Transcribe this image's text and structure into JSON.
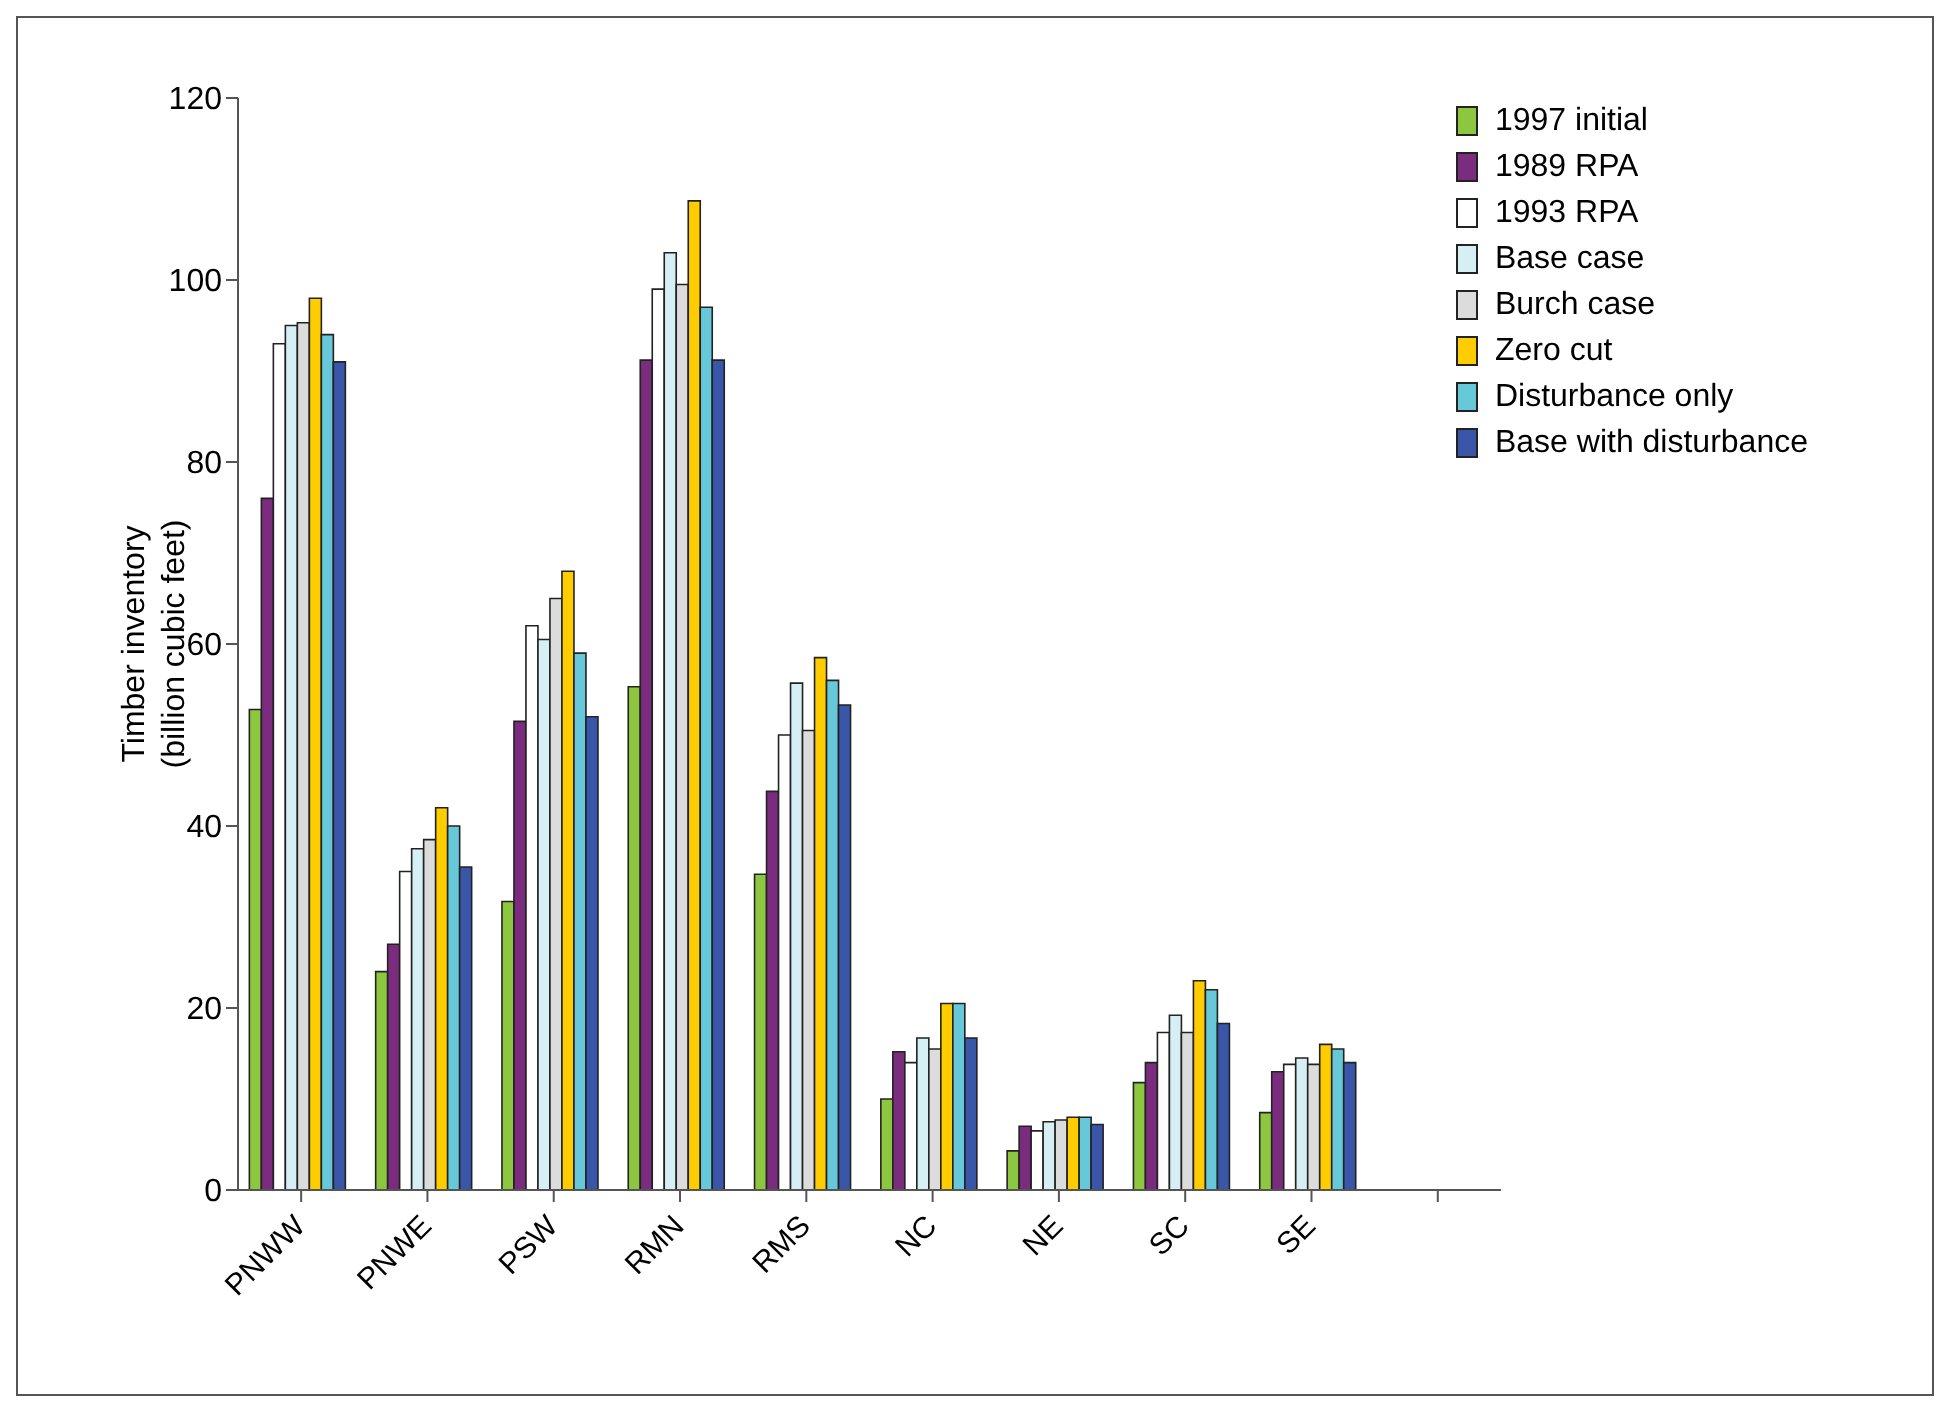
{
  "chart_data": {
    "type": "bar",
    "ylabel": "Timber inventory\n(billion cubic feet)",
    "categories": [
      "PNWW",
      "PNWE",
      "PSW",
      "RMN",
      "RMS",
      "NC",
      "NE",
      "SC",
      "SE",
      null
    ],
    "series": [
      {
        "name": "1997 initial",
        "color": "#8dc63f",
        "values": [
          52.8,
          24,
          31.7,
          55.3,
          34.7,
          10,
          4.3,
          11.8,
          8.5,
          null
        ]
      },
      {
        "name": "1989 RPA",
        "color": "#7b2c7f",
        "values": [
          76,
          27,
          51.5,
          91.2,
          43.8,
          15.2,
          7,
          14,
          13,
          null
        ]
      },
      {
        "name": "1993 RPA",
        "color": "#ffffff",
        "values": [
          93,
          35,
          62,
          99,
          50,
          14,
          6.5,
          17.3,
          13.8,
          null
        ]
      },
      {
        "name": "Base case",
        "color": "#d6eff5",
        "values": [
          95,
          37.5,
          60.5,
          103,
          55.7,
          16.7,
          7.5,
          19.2,
          14.5,
          null
        ]
      },
      {
        "name": "Burch case",
        "color": "#dcdcdc",
        "values": [
          95.3,
          38.5,
          65,
          99.5,
          50.5,
          15.5,
          7.7,
          17.3,
          13.8,
          null
        ]
      },
      {
        "name": "Zero cut",
        "color": "#ffcc00",
        "values": [
          98,
          42,
          68,
          108.7,
          58.5,
          20.5,
          8,
          23,
          16,
          null
        ]
      },
      {
        "name": "Disturbance only",
        "color": "#66c8d8",
        "values": [
          94,
          40,
          59,
          97,
          56,
          20.5,
          8,
          22,
          15.5,
          null
        ]
      },
      {
        "name": "Base with disturbance",
        "color": "#3a56a8",
        "values": [
          91,
          35.5,
          52,
          91.2,
          53.3,
          16.7,
          7.2,
          18.3,
          14,
          null
        ]
      }
    ],
    "ylim": [
      0,
      120
    ],
    "yticks": [
      0,
      20,
      40,
      60,
      80,
      100,
      120
    ],
    "grid": false,
    "legend": "top right"
  }
}
